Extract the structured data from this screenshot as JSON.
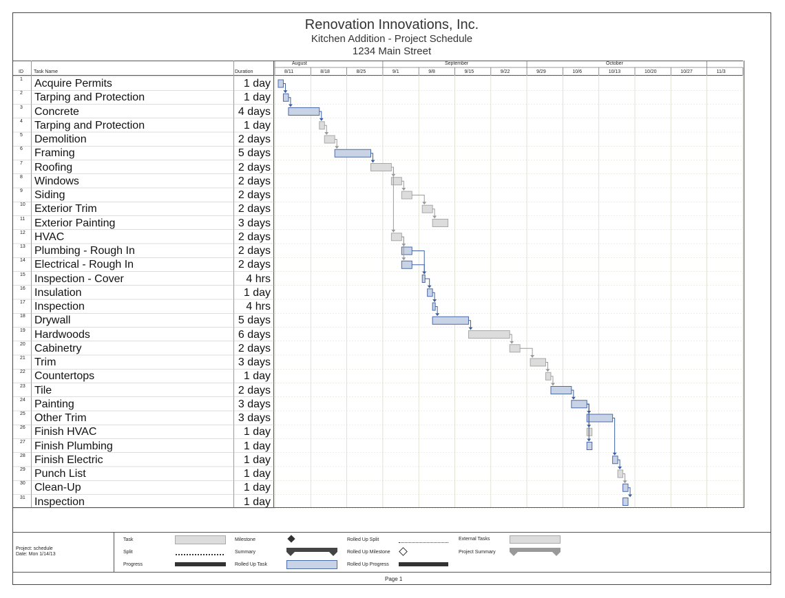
{
  "header": {
    "title": "Renovation Innovations, Inc.",
    "subtitle": "Kitchen Addition - Project Schedule",
    "address": "1234 Main Street"
  },
  "columns": {
    "id": "ID",
    "task": "Task Name",
    "duration": "Duration"
  },
  "months": [
    "August",
    "September",
    "October"
  ],
  "weeks": [
    "8/11",
    "8/18",
    "8/25",
    "9/1",
    "9/8",
    "9/15",
    "9/22",
    "9/29",
    "10/6",
    "10/13",
    "10/20",
    "10/27",
    "11/3"
  ],
  "chart_data": {
    "type": "gantt",
    "x_unit": "day",
    "start_week": "8/11",
    "tasks": [
      {
        "id": "1",
        "name": "Acquire Permits",
        "duration": "1 day",
        "start": 0,
        "days": 1,
        "style": "rolled"
      },
      {
        "id": "2",
        "name": "Tarping and Protection",
        "duration": "1 day",
        "start": 1,
        "days": 1,
        "style": "rolled"
      },
      {
        "id": "3",
        "name": "Concrete",
        "duration": "4 days",
        "start": 2,
        "days": 6,
        "style": "rolled"
      },
      {
        "id": "4",
        "name": "Tarping and Protection",
        "duration": "1 day",
        "start": 8,
        "days": 1,
        "style": "task"
      },
      {
        "id": "5",
        "name": "Demolition",
        "duration": "2 days",
        "start": 9,
        "days": 2,
        "style": "task"
      },
      {
        "id": "6",
        "name": "Framing",
        "duration": "5 days",
        "start": 11,
        "days": 7,
        "style": "rolled"
      },
      {
        "id": "7",
        "name": "Roofing",
        "duration": "2 days",
        "start": 18,
        "days": 4,
        "style": "task"
      },
      {
        "id": "8",
        "name": "Windows",
        "duration": "2 days",
        "start": 22,
        "days": 2,
        "style": "task"
      },
      {
        "id": "9",
        "name": "Siding",
        "duration": "2 days",
        "start": 24,
        "days": 2,
        "style": "task"
      },
      {
        "id": "10",
        "name": "Exterior Trim",
        "duration": "2 days",
        "start": 28,
        "days": 2,
        "style": "task"
      },
      {
        "id": "11",
        "name": "Exterior Painting",
        "duration": "3 days",
        "start": 30,
        "days": 3,
        "style": "task"
      },
      {
        "id": "12",
        "name": "HVAC",
        "duration": "2 days",
        "start": 22,
        "days": 2,
        "style": "task"
      },
      {
        "id": "13",
        "name": "Plumbing - Rough In",
        "duration": "2 days",
        "start": 24,
        "days": 2,
        "style": "rolled"
      },
      {
        "id": "14",
        "name": "Electrical - Rough In",
        "duration": "2 days",
        "start": 24,
        "days": 2,
        "style": "rolled"
      },
      {
        "id": "15",
        "name": "Inspection - Cover",
        "duration": "4 hrs",
        "start": 28,
        "days": 0.5,
        "style": "rolled"
      },
      {
        "id": "16",
        "name": "Insulation",
        "duration": "1 day",
        "start": 29,
        "days": 1,
        "style": "rolled"
      },
      {
        "id": "17",
        "name": "Inspection",
        "duration": "4 hrs",
        "start": 30,
        "days": 0.5,
        "style": "rolled"
      },
      {
        "id": "18",
        "name": "Drywall",
        "duration": "5 days",
        "start": 30,
        "days": 7,
        "style": "rolled"
      },
      {
        "id": "19",
        "name": "Hardwoods",
        "duration": "6 days",
        "start": 37,
        "days": 8,
        "style": "task"
      },
      {
        "id": "20",
        "name": "Cabinetry",
        "duration": "2 days",
        "start": 45,
        "days": 2,
        "style": "task"
      },
      {
        "id": "21",
        "name": "Trim",
        "duration": "3 days",
        "start": 49,
        "days": 3,
        "style": "task"
      },
      {
        "id": "22",
        "name": "Countertops",
        "duration": "1 day",
        "start": 52,
        "days": 1,
        "style": "task"
      },
      {
        "id": "23",
        "name": "Tile",
        "duration": "2 days",
        "start": 53,
        "days": 4,
        "style": "rolled"
      },
      {
        "id": "24",
        "name": "Painting",
        "duration": "3 days",
        "start": 57,
        "days": 3,
        "style": "rolled"
      },
      {
        "id": "25",
        "name": "Other Trim",
        "duration": "3 days",
        "start": 60,
        "days": 5,
        "style": "rolled"
      },
      {
        "id": "26",
        "name": "Finish HVAC",
        "duration": "1 day",
        "start": 60,
        "days": 1,
        "style": "task"
      },
      {
        "id": "27",
        "name": "Finish Plumbing",
        "duration": "1 day",
        "start": 60,
        "days": 1,
        "style": "rolled"
      },
      {
        "id": "28",
        "name": "Finish Electric",
        "duration": "1 day",
        "start": 65,
        "days": 1,
        "style": "rolled"
      },
      {
        "id": "29",
        "name": "Punch List",
        "duration": "1 day",
        "start": 66,
        "days": 1,
        "style": "task"
      },
      {
        "id": "30",
        "name": "Clean-Up",
        "duration": "1 day",
        "start": 67,
        "days": 1,
        "style": "rolled"
      },
      {
        "id": "31",
        "name": "Inspection",
        "duration": "1 day",
        "start": 67,
        "days": 1,
        "style": "rolled"
      }
    ],
    "links": [
      [
        1,
        2
      ],
      [
        2,
        3
      ],
      [
        3,
        4
      ],
      [
        4,
        5
      ],
      [
        5,
        6
      ],
      [
        6,
        7
      ],
      [
        7,
        8
      ],
      [
        8,
        9
      ],
      [
        9,
        10
      ],
      [
        10,
        11
      ],
      [
        7,
        12
      ],
      [
        12,
        13
      ],
      [
        12,
        14
      ],
      [
        13,
        15
      ],
      [
        14,
        15
      ],
      [
        15,
        16
      ],
      [
        16,
        17
      ],
      [
        17,
        18
      ],
      [
        18,
        19
      ],
      [
        19,
        20
      ],
      [
        20,
        21
      ],
      [
        21,
        22
      ],
      [
        22,
        23
      ],
      [
        23,
        24
      ],
      [
        24,
        25
      ],
      [
        24,
        26
      ],
      [
        24,
        27
      ],
      [
        25,
        28
      ],
      [
        28,
        29
      ],
      [
        29,
        30
      ],
      [
        30,
        31
      ]
    ]
  },
  "footer": {
    "project": "Project: schedule",
    "date": "Date: Mon 1/14/13",
    "page": "Page 1"
  },
  "legend": {
    "task": "Task",
    "split": "Split",
    "progress": "Progress",
    "milestone": "Milestone",
    "summary": "Summary",
    "rolled_up_task": "Rolled Up Task",
    "rolled_up_split": "Rolled Up Split",
    "rolled_up_milestone": "Rolled Up Milestone",
    "rolled_up_progress": "Rolled Up Progress",
    "external_tasks": "External Tasks",
    "project_summary": "Project Summary"
  },
  "colors": {
    "task_fill": "#dcdcdc",
    "task_stroke": "#a8a8a8",
    "rolled_fill": "#c9d3e6",
    "rolled_stroke": "#4b68a8",
    "link_blue": "#3b5fa0",
    "link_gray": "#999999",
    "grid": "#d9dcc9"
  }
}
